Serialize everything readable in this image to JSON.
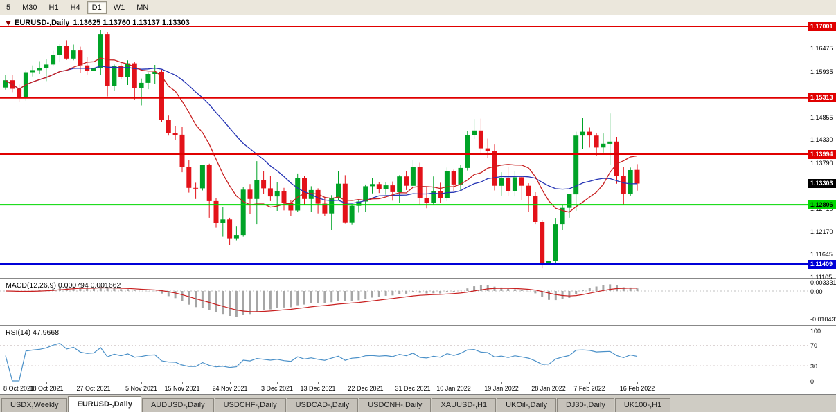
{
  "toolbar": {
    "timeframes": [
      {
        "label": "5",
        "active": false
      },
      {
        "label": "M30",
        "active": false
      },
      {
        "label": "H1",
        "active": false
      },
      {
        "label": "H4",
        "active": false
      },
      {
        "label": "D1",
        "active": true
      },
      {
        "label": "W1",
        "active": false
      },
      {
        "label": "MN",
        "active": false
      }
    ]
  },
  "chart_header": {
    "symbol": "EURUSD-,Daily",
    "ohlc": "1.13625 1.13760 1.13137 1.13303"
  },
  "macd_panel": {
    "title": "MACD(12,26,9) 0.000794 0.001662",
    "axis_labels": [
      {
        "label": "0.003331",
        "value": 0.003331
      },
      {
        "label": "0.00",
        "value": 0
      },
      {
        "label": "-0.010431",
        "value": -0.010431
      }
    ]
  },
  "rsi_panel": {
    "title": "RSI(14) 47.9668",
    "levels": [
      70,
      30
    ],
    "axis_labels": [
      {
        "label": "100",
        "value": 100
      },
      {
        "label": "70",
        "value": 70
      },
      {
        "label": "30",
        "value": 30
      },
      {
        "label": "0",
        "value": 0
      }
    ]
  },
  "tabs": [
    {
      "label": "USDX,Weekly",
      "active": false
    },
    {
      "label": "EURUSD-,Daily",
      "active": true
    },
    {
      "label": "AUDUSD-,Daily",
      "active": false
    },
    {
      "label": "USDCHF-,Daily",
      "active": false
    },
    {
      "label": "USDCAD-,Daily",
      "active": false
    },
    {
      "label": "USDCNH-,Daily",
      "active": false
    },
    {
      "label": "XAUUSD-,H1",
      "active": false
    },
    {
      "label": "UKOil-,Daily",
      "active": false
    },
    {
      "label": "DJ30-,Daily",
      "active": false
    },
    {
      "label": "UK100-,H1",
      "active": false
    }
  ],
  "colors": {
    "up": "#00a327",
    "down": "#e31219",
    "ma_fast": "#c82020",
    "ma_slow": "#2433b4",
    "macd_hist": "#a6a6a6",
    "macd_signal": "#c82020",
    "rsi_line": "#4a90c8"
  },
  "chart_data": {
    "type": "candlestick",
    "symbol": "EURUSD-",
    "timeframe": "Daily",
    "last_ohlc": {
      "open": 1.13625,
      "high": 1.1376,
      "low": 1.13137,
      "close": 1.13303
    },
    "current_price": 1.13303,
    "y_axis_labels": [
      1.16475,
      1.15935,
      1.14855,
      1.1433,
      1.1379,
      1.1271,
      1.1217,
      1.11645,
      1.11105
    ],
    "horizontal_lines": [
      {
        "value": 1.17001,
        "color": "#e00000",
        "width": 2,
        "text_color": "#ffffff"
      },
      {
        "value": 1.15313,
        "color": "#e00000",
        "width": 2,
        "text_color": "#ffffff"
      },
      {
        "value": 1.13994,
        "color": "#e00000",
        "width": 2,
        "text_color": "#ffffff"
      },
      {
        "value": 1.12806,
        "color": "#00d800",
        "width": 2,
        "text_color": "#000000"
      },
      {
        "value": 1.11409,
        "color": "#0000d8",
        "width": 3,
        "text_color": "#ffffff"
      }
    ],
    "moving_averages": [
      {
        "period": 10,
        "color_key": "ma_fast"
      },
      {
        "period": 21,
        "color_key": "ma_slow"
      }
    ],
    "x_ticks": [
      {
        "index": 0,
        "label": "8 Oct 2021"
      },
      {
        "index": 6,
        "label": "18 Oct 2021"
      },
      {
        "index": 13,
        "label": "27 Oct 2021"
      },
      {
        "index": 20,
        "label": "5 Nov 2021"
      },
      {
        "index": 26,
        "label": "15 Nov 2021"
      },
      {
        "index": 33,
        "label": "24 Nov 2021"
      },
      {
        "index": 40,
        "label": "3 Dec 2021"
      },
      {
        "index": 46,
        "label": "13 Dec 2021"
      },
      {
        "index": 53,
        "label": "22 Dec 2021"
      },
      {
        "index": 60,
        "label": "31 Dec 2021"
      },
      {
        "index": 66,
        "label": "10 Jan 2022"
      },
      {
        "index": 73,
        "label": "19 Jan 2022"
      },
      {
        "index": 80,
        "label": "28 Jan 2022"
      },
      {
        "index": 86,
        "label": "7 Feb 2022"
      },
      {
        "index": 93,
        "label": "16 Feb 2022"
      }
    ],
    "ohlc_format": [
      "open",
      "high",
      "low",
      "close"
    ],
    "candles": [
      [
        1.1556,
        1.1586,
        1.1551,
        1.1573
      ],
      [
        1.1573,
        1.1585,
        1.1545,
        1.1553
      ],
      [
        1.1553,
        1.1563,
        1.1522,
        1.1531
      ],
      [
        1.1531,
        1.1597,
        1.1525,
        1.1592
      ],
      [
        1.1592,
        1.1608,
        1.1582,
        1.1597
      ],
      [
        1.1597,
        1.1618,
        1.1588,
        1.1601
      ],
      [
        1.1601,
        1.1622,
        1.1571,
        1.161
      ],
      [
        1.161,
        1.1642,
        1.1607,
        1.1633
      ],
      [
        1.1633,
        1.1658,
        1.1617,
        1.1653
      ],
      [
        1.1653,
        1.1667,
        1.1621,
        1.1624
      ],
      [
        1.1624,
        1.1657,
        1.162,
        1.1643
      ],
      [
        1.1643,
        1.1652,
        1.1591,
        1.1608
      ],
      [
        1.1608,
        1.1627,
        1.1585,
        1.1596
      ],
      [
        1.1596,
        1.1626,
        1.1583,
        1.1602
      ],
      [
        1.1602,
        1.1692,
        1.1585,
        1.1682
      ],
      [
        1.1682,
        1.1686,
        1.1535,
        1.156
      ],
      [
        1.156,
        1.161,
        1.1549,
        1.1606
      ],
      [
        1.1606,
        1.1614,
        1.1575,
        1.158
      ],
      [
        1.158,
        1.162,
        1.1562,
        1.1613
      ],
      [
        1.1613,
        1.1617,
        1.1528,
        1.1555
      ],
      [
        1.1555,
        1.1577,
        1.1514,
        1.1567
      ],
      [
        1.1567,
        1.1592,
        1.1552,
        1.1588
      ],
      [
        1.1588,
        1.1609,
        1.1565,
        1.1593
      ],
      [
        1.1593,
        1.1598,
        1.1475,
        1.1479
      ],
      [
        1.1479,
        1.149,
        1.1443,
        1.1449
      ],
      [
        1.1449,
        1.1466,
        1.1432,
        1.1445
      ],
      [
        1.1445,
        1.1464,
        1.1357,
        1.1369
      ],
      [
        1.1369,
        1.1386,
        1.1309,
        1.132
      ],
      [
        1.132,
        1.1332,
        1.1294,
        1.1319
      ],
      [
        1.1319,
        1.1375,
        1.1314,
        1.1374
      ],
      [
        1.1374,
        1.1377,
        1.125,
        1.1289
      ],
      [
        1.1289,
        1.1297,
        1.1226,
        1.1237
      ],
      [
        1.1237,
        1.1275,
        1.1205,
        1.1246
      ],
      [
        1.1246,
        1.125,
        1.1186,
        1.12
      ],
      [
        1.12,
        1.123,
        1.1197,
        1.1209
      ],
      [
        1.1209,
        1.1323,
        1.1205,
        1.1316
      ],
      [
        1.1316,
        1.1329,
        1.1258,
        1.1294
      ],
      [
        1.1294,
        1.1383,
        1.1235,
        1.1339
      ],
      [
        1.1339,
        1.136,
        1.1305,
        1.1319
      ],
      [
        1.1319,
        1.1348,
        1.1289,
        1.13
      ],
      [
        1.13,
        1.1334,
        1.1266,
        1.1313
      ],
      [
        1.1313,
        1.132,
        1.1267,
        1.1284
      ],
      [
        1.1284,
        1.1291,
        1.1253,
        1.1267
      ],
      [
        1.1267,
        1.1354,
        1.1263,
        1.1343
      ],
      [
        1.1343,
        1.1348,
        1.128,
        1.1294
      ],
      [
        1.1294,
        1.1324,
        1.1264,
        1.1315
      ],
      [
        1.1315,
        1.1319,
        1.126,
        1.1283
      ],
      [
        1.1283,
        1.1299,
        1.1254,
        1.126
      ],
      [
        1.126,
        1.1303,
        1.1222,
        1.1296
      ],
      [
        1.1296,
        1.136,
        1.1292,
        1.133
      ],
      [
        1.133,
        1.135,
        1.1236,
        1.1239
      ],
      [
        1.1239,
        1.1282,
        1.1234,
        1.1278
      ],
      [
        1.1278,
        1.1293,
        1.1262,
        1.1288
      ],
      [
        1.1288,
        1.1328,
        1.1263,
        1.1324
      ],
      [
        1.1324,
        1.1344,
        1.1307,
        1.1329
      ],
      [
        1.1329,
        1.1334,
        1.1308,
        1.1318
      ],
      [
        1.1318,
        1.1334,
        1.1304,
        1.1326
      ],
      [
        1.1326,
        1.1335,
        1.129,
        1.131
      ],
      [
        1.131,
        1.135,
        1.1285,
        1.1347
      ],
      [
        1.1347,
        1.136,
        1.1315,
        1.1325
      ],
      [
        1.1325,
        1.1386,
        1.132,
        1.137
      ],
      [
        1.137,
        1.1379,
        1.1279,
        1.1297
      ],
      [
        1.1297,
        1.1323,
        1.1272,
        1.1285
      ],
      [
        1.1285,
        1.1347,
        1.128,
        1.1313
      ],
      [
        1.1313,
        1.1332,
        1.1285,
        1.1296
      ],
      [
        1.1296,
        1.1368,
        1.1289,
        1.1359
      ],
      [
        1.1359,
        1.1363,
        1.1313,
        1.1328
      ],
      [
        1.1328,
        1.1375,
        1.1314,
        1.1367
      ],
      [
        1.1367,
        1.1453,
        1.1361,
        1.1444
      ],
      [
        1.1444,
        1.1482,
        1.1435,
        1.1455
      ],
      [
        1.1455,
        1.1483,
        1.1398,
        1.1413
      ],
      [
        1.1413,
        1.1436,
        1.1391,
        1.1406
      ],
      [
        1.1406,
        1.1422,
        1.1314,
        1.1325
      ],
      [
        1.1325,
        1.1357,
        1.1302,
        1.1343
      ],
      [
        1.1343,
        1.137,
        1.1301,
        1.1313
      ],
      [
        1.1313,
        1.136,
        1.13,
        1.1345
      ],
      [
        1.1345,
        1.1349,
        1.1291,
        1.1325
      ],
      [
        1.1325,
        1.1331,
        1.1263,
        1.1301
      ],
      [
        1.1301,
        1.131,
        1.1235,
        1.124
      ],
      [
        1.124,
        1.1245,
        1.1131,
        1.1144
      ],
      [
        1.1144,
        1.1174,
        1.1121,
        1.1149
      ],
      [
        1.1149,
        1.1248,
        1.1141,
        1.1235
      ],
      [
        1.1235,
        1.128,
        1.1221,
        1.1273
      ],
      [
        1.1273,
        1.1306,
        1.125,
        1.1305
      ],
      [
        1.1305,
        1.1452,
        1.1266,
        1.1443
      ],
      [
        1.1443,
        1.1484,
        1.1412,
        1.1452
      ],
      [
        1.1452,
        1.1462,
        1.1415,
        1.1443
      ],
      [
        1.1443,
        1.1449,
        1.1396,
        1.1415
      ],
      [
        1.1415,
        1.1448,
        1.1403,
        1.1424
      ],
      [
        1.1424,
        1.1495,
        1.1375,
        1.1429
      ],
      [
        1.1429,
        1.144,
        1.133,
        1.1349
      ],
      [
        1.1349,
        1.1369,
        1.1279,
        1.1306
      ],
      [
        1.1306,
        1.1368,
        1.1301,
        1.1362
      ],
      [
        1.13625,
        1.1376,
        1.13137,
        1.13303
      ]
    ]
  }
}
